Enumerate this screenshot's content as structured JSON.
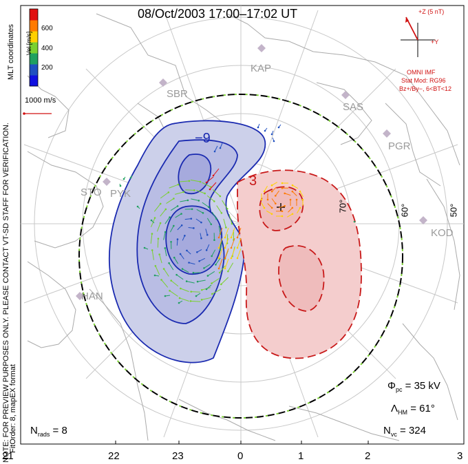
{
  "title": "08/Oct/2003 17:00–17:02 UT",
  "side_note": "NOTE: FOR PREVIEW PURPOSES ONLY. PLEASE CONTACT VT-SD STAFF FOR VERIFICATION.",
  "side_note2": "FitOrder: 8, mapEX format",
  "coord_label": "MLT coordinates",
  "colorbar": {
    "label": "Vel [m/s]",
    "ticks": [
      "600",
      "400",
      "200"
    ],
    "colors": [
      "#e01010",
      "#ff7a00",
      "#ffd000",
      "#7ad030",
      "#20a060",
      "#2050c0",
      "#1010e0"
    ]
  },
  "scale_label": "1000 m/s",
  "imf": {
    "z_label": "+Z (5 nT)",
    "y_label": "+Y",
    "source": "OMNI IMF",
    "model_line1": "Stat Mod: RG96",
    "model_line2": "Bz+/By−, 6<BT<12",
    "color": "#d01010"
  },
  "stations": [
    "KAP",
    "SBR",
    "SAS",
    "PGR",
    "STO",
    "PYK",
    "KOD",
    "HAN"
  ],
  "lat_labels": [
    "70°",
    "60°",
    "50°"
  ],
  "contour_labels": [
    "−9",
    "3"
  ],
  "stats": {
    "phi_pc": "Φ",
    "phi_pc_sub": "pc",
    "phi_pc_value": "= 35 kV",
    "lambda_hm": "Λ",
    "lambda_hm_sub": "HM",
    "lambda_hm_value": "= 61°",
    "n_vc": "N",
    "n_vc_sub": "vc",
    "n_vc_value": "= 324",
    "n_rads": "N",
    "n_rads_sub": "rads",
    "n_rads_value": "= 8"
  },
  "mlt_ticks": [
    "21",
    "22",
    "23",
    "0",
    "1",
    "2",
    "3"
  ],
  "colors": {
    "negative_fill": "#c9cdea",
    "negative_line": "#1a2ab0",
    "positive_fill": "#f4cccc",
    "positive_line": "#c81818",
    "map_line": "#a8a8a8"
  }
}
